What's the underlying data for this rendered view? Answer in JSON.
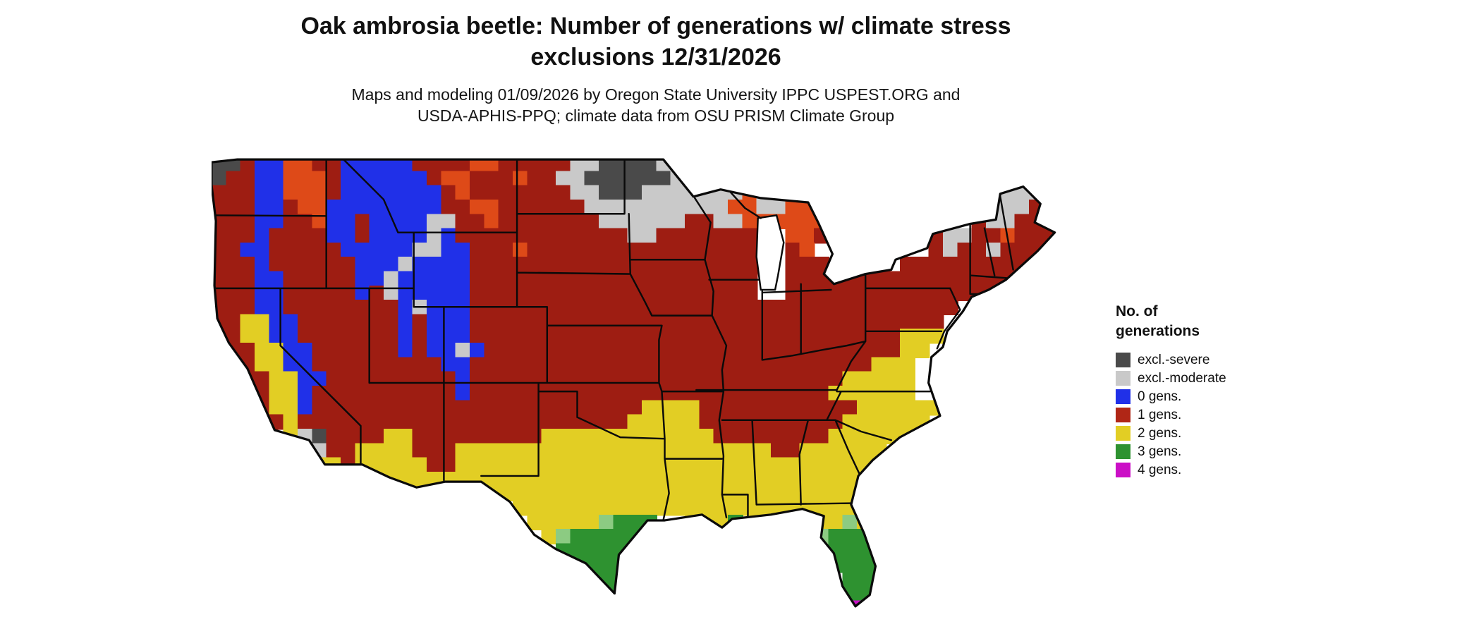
{
  "page": {
    "background": "#ffffff"
  },
  "header": {
    "title_line1": "Oak ambrosia beetle: Number of generations w/ climate stress",
    "title_line2": "exclusions 12/31/2026",
    "subtitle_line1": "Maps and modeling 01/09/2026 by Oregon State University IPPC USPEST.ORG and",
    "subtitle_line2": "USDA-APHIS-PPQ; climate data from OSU PRISM Climate Group"
  },
  "legend": {
    "title_line1": "No. of",
    "title_line2": "generations",
    "items": [
      {
        "label": "excl.-severe",
        "color": "#4A4A4A"
      },
      {
        "label": "excl.-moderate",
        "color": "#C9C9C9"
      },
      {
        "label": "0 gens.",
        "color": "#2030E8"
      },
      {
        "label": "1 gens.",
        "color": "#B02616"
      },
      {
        "label": "2 gens.",
        "color": "#E2CE24"
      },
      {
        "label": "3 gens.",
        "color": "#2E9230"
      },
      {
        "label": "4 gens.",
        "color": "#CB0FC6"
      }
    ]
  },
  "chart_data": {
    "type": "heatmap",
    "title": "Oak ambrosia beetle: Number of generations w/ climate stress exclusions 12/31/2026",
    "region": "Continental United States",
    "classes": [
      {
        "key": "K",
        "label": "excl.-severe",
        "color": "#4A4A4A"
      },
      {
        "key": "L",
        "label": "excl.-moderate",
        "color": "#C9C9C9"
      },
      {
        "key": "B",
        "label": "0 gens.",
        "color": "#2030E8"
      },
      {
        "key": "R",
        "label": "1 gens.",
        "color": "#9E1D12"
      },
      {
        "key": "O",
        "label": "1 gens. (bright)",
        "color": "#DE4A18"
      },
      {
        "key": "Y",
        "label": "2 gens.",
        "color": "#E2CE24"
      },
      {
        "key": "g",
        "label": "3 gens. (fringe)",
        "color": "#8CCB82"
      },
      {
        "key": "G",
        "label": "3 gens.",
        "color": "#2E9230"
      },
      {
        "key": "M",
        "label": "4 gens.",
        "color": "#CB0FC6"
      }
    ],
    "palette": {
      "K": "#4A4A4A",
      "L": "#C9C9C9",
      "B": "#2030E8",
      "R": "#9E1D12",
      "O": "#DE4A18",
      "Y": "#E2CE24",
      "G": "#2E9230",
      "g": "#8CCB82",
      "M": "#CB0FC6"
    },
    "grid_cols": 60,
    "grid_rows_count": 32,
    "grid_rows": [
      "KKRBBOORRBBBBBRRRROORRRRRLLKKKKL",
      "KRRBBOOORBBBBBBROORRRORRLLKKKKKKLL",
      "RRRBBOOORBBBBBBBRORRRRRRRLLKKKLLLLLLLOL................LLL",
      "RRRBBROOBBBBBBBBRROORRRRRRLLLLLLLLLLOOLLOOO...........LLLRR",
      "RRRBBRROBBRBBBBLLRRORRRRRRRLLLLLLRRLLOOOOOOR.........RLLRRR",
      "RRRBRRRRBBRBBBBLBRRRRRRRRRRRRLLRRRRRRR..OOR.......RLLRRORRR",
      "RRBBRRRRRBBBBBLLBBRRRORRRRRRRRRRRRRRRR..RO........RLRRLRRR",
      "RRRBRRRRRRBBBLBBBBRRRRRRRRRRRRRRRRRRRR..RRR.....RRRRRRRRR",
      "RRRBBRRRRRBBLBBBBBRRRRRRRRRRRRRRRRRRRR..RRRRRRRRRRRRRRRRR",
      "RRRBBRRRRRBRLBBBBBRRRRRRRRRRRRRRRRRRRR..RRRRRRRRRRRRRRR",
      "RRRBBRRRRRRRRBLBBBRRRRRRRRRRRRRRRRRRRRRRRRRRRRRRRRRR",
      "RRYYBBRRRRRRRBRBBBRRRRRRRRRRRRRRRRRRRRRRRRRRRRRRRRR",
      "RRYYBBRRRRRRRBRBBBRRRRRRRRRRRRRRRRRRRRRRRRRRRRRRYYY",
      "RRRYYBBRRRRRRBRBBLBRRRRRRRRRRRRRRRRRRRRRRRRRRRRRYY",
      ".RRYYBBRRRRRRRRRBBRRRRRRRRRRRRRRRRRRRRRRRRRRRRYYY",
      "..RRYYBBRRRRRRRRRBRRRRRRRRRRRRRRRRRRRRRRRRRRYYYYY",
      "...RYYBRRRRRRRRRRBRRRRRRRRRRRRRRRRRRRRRRRRRYYYYYY",
      "...RYYBRRRRRRRRRRRRRRRRRRRRRRRYYYYRRRRRRRRRRRYYYYYY",
      "....RYRRRRRRRRRRRRRRRRRRRRRRRYYYYYRRRRRRRRRRYYYYYY",
      ".....YLKRRRRYYRRRRRRRRRYYYYYYYYYYYYRRRRRRRRYYYYYY",
      "......YLRRYYYYRRRYYYYYYYYYYYYYYYYYYYYYYRRYYYYYY",
      ".......YYRYYYYYRRYYYYYYYYYYYYYYYYYYYYYYYYYYYYYY",
      "..........YYYYYYYYYYYYYYYYYYYYYYYYYYYYYYYYYYYY",
      "............YYY....YYYYYYYYYYYYYYYYYYYYYYYYYYYYYY",
      ".....................YYYYYYYYYYYYYYYYYYYYYYYYY",
      "......................YYYYYgGGG..YYYG.....YYgY",
      ".......................YgGGGGG............gGGGY",
      "........................GGGGG..............GGGG",
      ".........................GGGG..............GGGG",
      "..........................GGG...............GGG",
      "...........................GG...............GGM",
      "............................................MM"
    ]
  }
}
